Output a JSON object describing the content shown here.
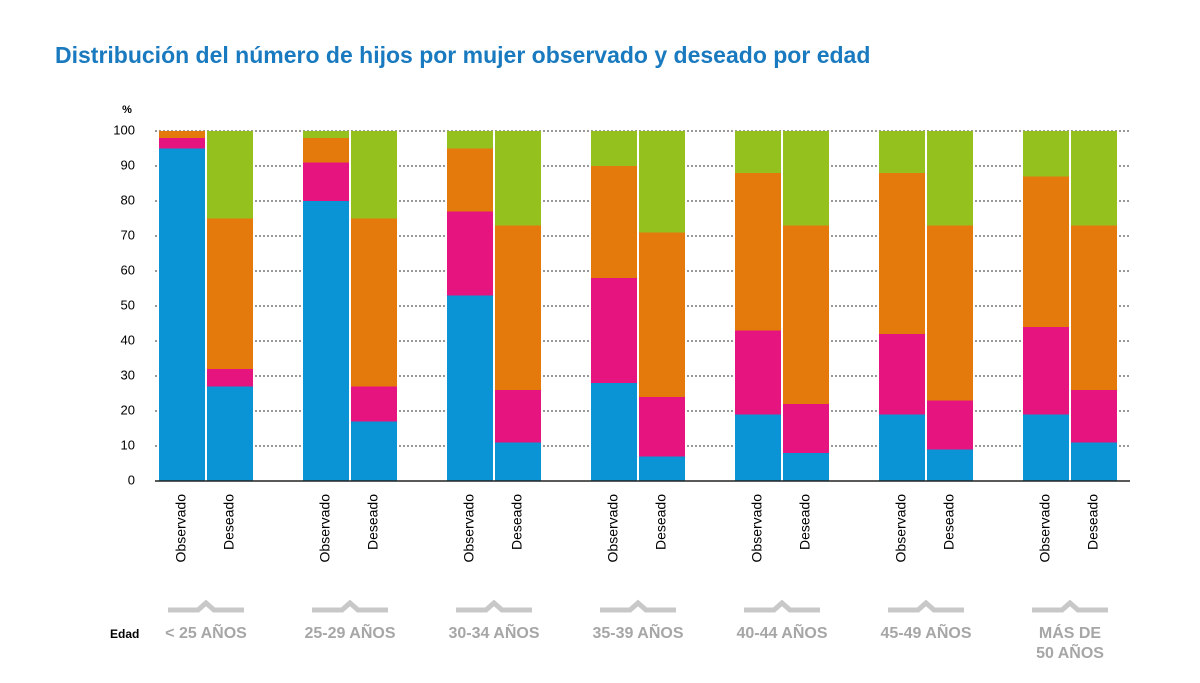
{
  "chart_data": {
    "type": "stacked-bar",
    "title": "Distribución del número de hijos por mujer observado y deseado por edad",
    "y_label": "%",
    "x_label": "Edad",
    "categories": [
      "Observado",
      "Deseado",
      "Observado",
      "Deseado",
      "Observado",
      "Deseado",
      "Observado",
      "Deseado",
      "Observado",
      "Deseado",
      "Observado",
      "Deseado",
      "Observado",
      "Deseado"
    ],
    "group_labels": [
      "< 25 AÑOS",
      "25-29 AÑOS",
      "30-34 AÑOS",
      "35-39 AÑOS",
      "40-44 AÑOS",
      "45-49 AÑOS",
      "MÁS DE\n50 AÑOS"
    ],
    "series": [
      {
        "color": "#0a94d6",
        "values": [
          95,
          27,
          80,
          17,
          53,
          11,
          28,
          7,
          19,
          8,
          19,
          9,
          19,
          11
        ]
      },
      {
        "color": "#e5147e",
        "values": [
          3,
          5,
          11,
          10,
          24,
          15,
          30,
          17,
          24,
          14,
          23,
          14,
          25,
          15
        ]
      },
      {
        "color": "#e57a0c",
        "values": [
          2,
          43,
          7,
          48,
          18,
          47,
          32,
          47,
          45,
          51,
          46,
          50,
          43,
          47
        ]
      },
      {
        "color": "#95c11f",
        "values": [
          0,
          25,
          2,
          25,
          5,
          27,
          10,
          29,
          12,
          27,
          12,
          27,
          13,
          27
        ]
      }
    ],
    "ylim": [
      0,
      100
    ],
    "yticks": [
      0,
      10,
      20,
      30,
      40,
      50,
      60,
      70,
      80,
      90,
      100
    ],
    "grid": true
  }
}
